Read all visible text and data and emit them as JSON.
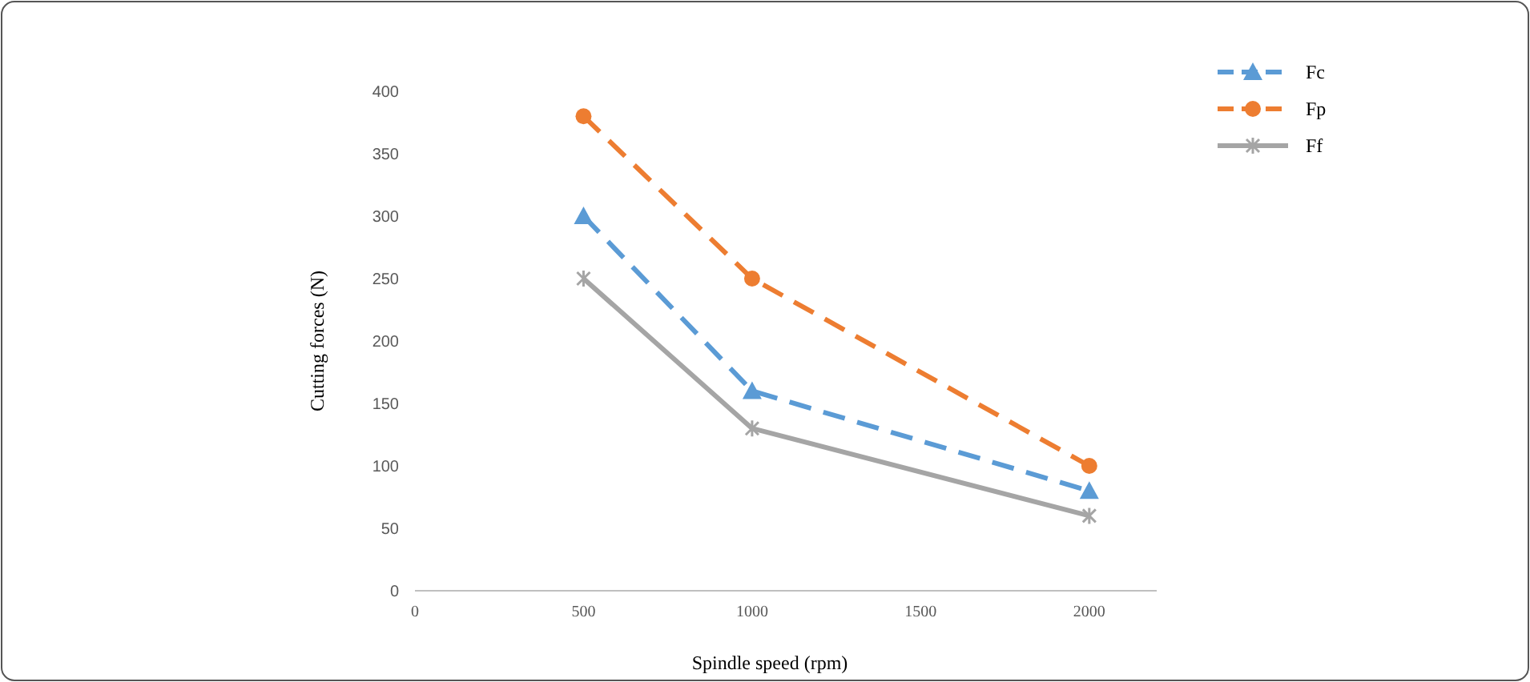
{
  "chart_data": {
    "type": "line",
    "xlabel": "Spindle speed (rpm)",
    "ylabel": "Cutting forces (N)",
    "x": [
      500,
      1000,
      2000
    ],
    "series": [
      {
        "name": "Fc",
        "color": "#5b9bd5",
        "values": [
          300,
          160,
          80
        ],
        "marker": "triangle",
        "line_style": "dashed"
      },
      {
        "name": "Fp",
        "color": "#ed7d31",
        "values": [
          380,
          250,
          100
        ],
        "marker": "circle",
        "line_style": "dashed"
      },
      {
        "name": "Ff",
        "color": "#a5a5a5",
        "values": [
          250,
          130,
          60
        ],
        "marker": "cross",
        "line_style": "solid"
      }
    ],
    "xlim": [
      0,
      2200
    ],
    "xticks": [
      0,
      500,
      1000,
      1500,
      2000
    ],
    "ylim": [
      0,
      400
    ],
    "yticks": [
      0,
      50,
      100,
      150,
      200,
      250,
      300,
      350,
      400
    ],
    "grid": false,
    "legend": "top right"
  }
}
